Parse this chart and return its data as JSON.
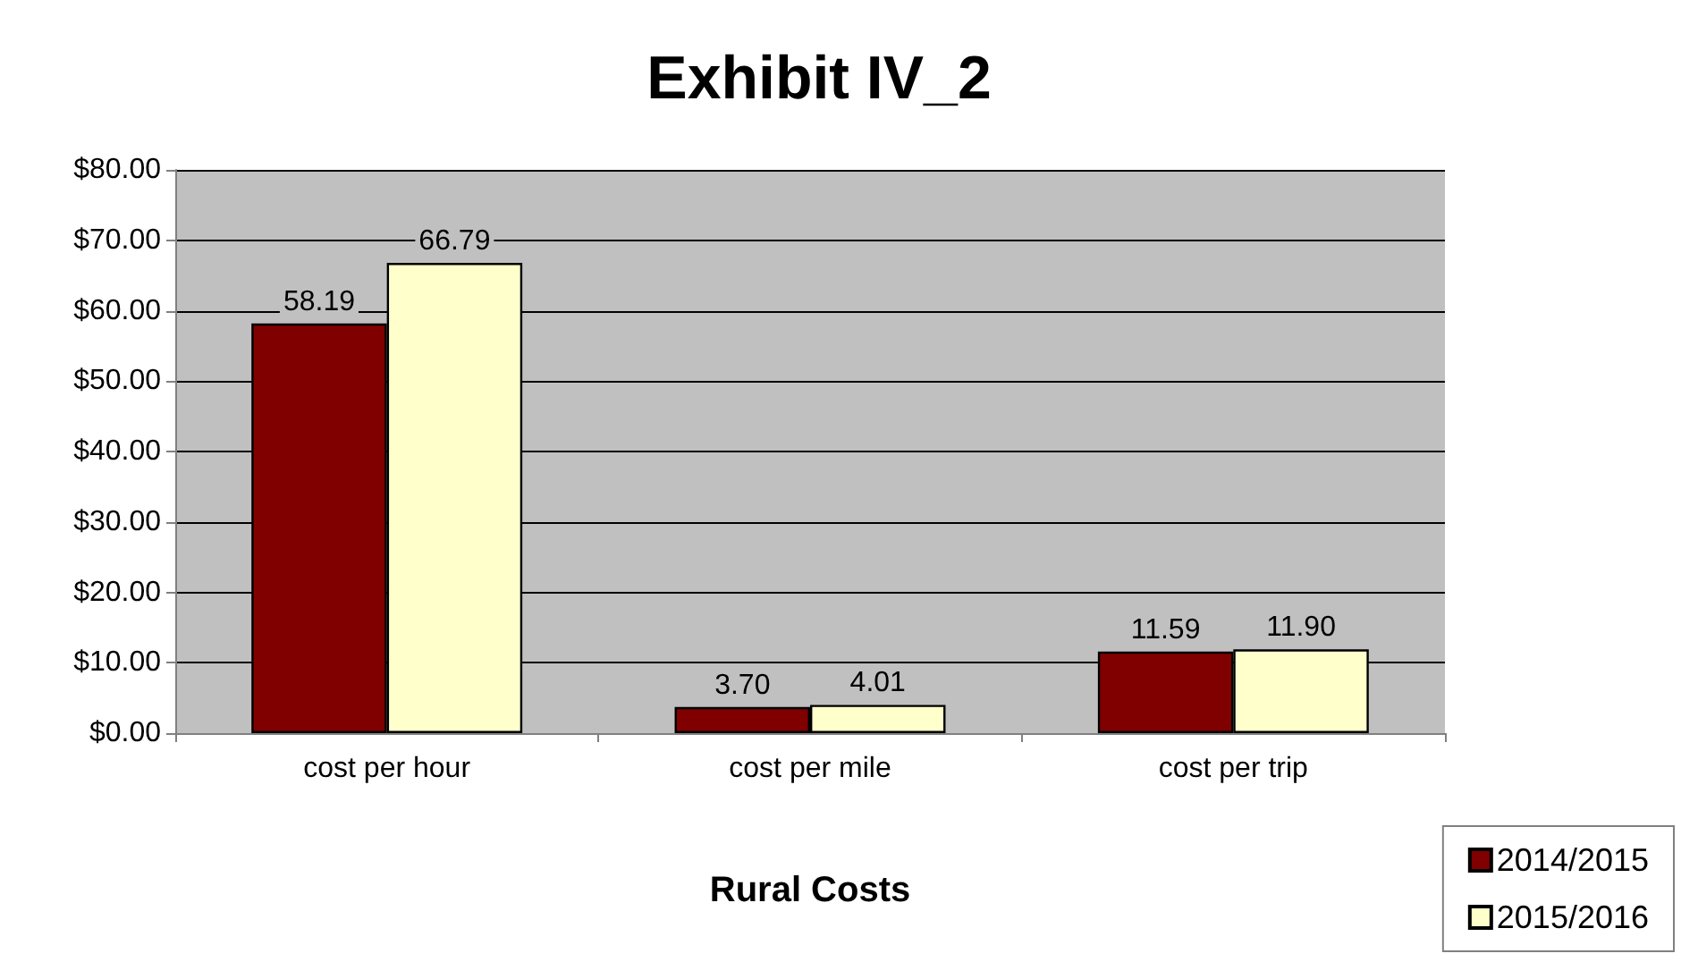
{
  "chart_data": {
    "type": "bar",
    "title": "Exhibit IV_2",
    "xlabel": "Rural Costs",
    "categories": [
      "cost per hour",
      "cost per mile",
      "cost per trip"
    ],
    "series": [
      {
        "name": "2014/2015",
        "color": "#800000",
        "values": [
          58.19,
          3.7,
          11.59
        ],
        "value_labels": [
          "58.19",
          "3.70",
          "11.59"
        ]
      },
      {
        "name": "2015/2016",
        "color": "#ffffcc",
        "values": [
          66.79,
          4.01,
          11.9
        ],
        "value_labels": [
          "66.79",
          "4.01",
          "11.90"
        ]
      }
    ],
    "ylim": [
      0,
      80
    ],
    "yticks": [
      {
        "value": 0,
        "label": "$0.00"
      },
      {
        "value": 10,
        "label": "$10.00"
      },
      {
        "value": 20,
        "label": "$20.00"
      },
      {
        "value": 30,
        "label": "$30.00"
      },
      {
        "value": 40,
        "label": "$40.00"
      },
      {
        "value": 50,
        "label": "$50.00"
      },
      {
        "value": 60,
        "label": "$60.00"
      },
      {
        "value": 70,
        "label": "$70.00"
      },
      {
        "value": 80,
        "label": "$80.00"
      }
    ],
    "grid": "y",
    "legend": "bottom right"
  }
}
